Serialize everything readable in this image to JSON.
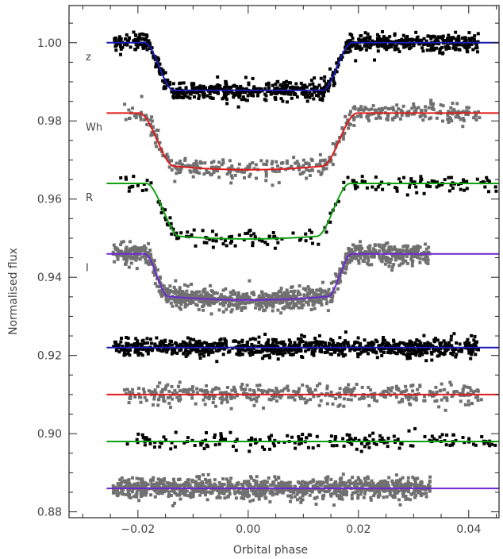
{
  "chart_data": {
    "type": "scatter",
    "title": "",
    "xlabel": "Orbital phase",
    "ylabel": "Normalised flux",
    "xlim": [
      -0.0325,
      0.0455
    ],
    "ylim": [
      0.8785,
      1.0095
    ],
    "x_ticks": [
      -0.02,
      0.0,
      0.02,
      0.04
    ],
    "x_tick_labels": [
      "−0.02",
      "0.00",
      "0.02",
      "0.04"
    ],
    "y_ticks": [
      0.88,
      0.9,
      0.92,
      0.94,
      0.96,
      0.98,
      1.0
    ],
    "y_tick_labels": [
      "0.88",
      "0.90",
      "0.92",
      "0.94",
      "0.96",
      "0.98",
      "1.00"
    ],
    "grid": false,
    "colors": {
      "blue": "#1a1ab4",
      "red": "#e01a1a",
      "green": "#12a012",
      "purple": "#6a2ad0",
      "black_points": "#000000",
      "gray_points": "#707070",
      "axis": "#222222"
    },
    "series": [
      {
        "name": "z",
        "role": "light curve",
        "baseline": 1.0,
        "depth": 0.0122,
        "ingress_start": -0.0188,
        "ingress_end": -0.0135,
        "egress_start": 0.0135,
        "egress_end": 0.0188,
        "curvature": 0.0,
        "model_color": "#1a1ab4",
        "point_color": "#000000",
        "data_range": [
          -0.0245,
          0.0418
        ],
        "n_points": 900,
        "scatter": 0.0011
      },
      {
        "name": "Wh",
        "role": "light curve",
        "baseline": 0.982,
        "depth": 0.0125,
        "ingress_start": -0.0198,
        "ingress_end": -0.0135,
        "egress_start": 0.0135,
        "egress_end": 0.0198,
        "curvature": 0.002,
        "model_color": "#e01a1a",
        "point_color": "#707070",
        "data_range": [
          -0.0225,
          0.0425
        ],
        "n_points": 420,
        "scatter": 0.0013
      },
      {
        "name": "R",
        "role": "light curve",
        "baseline": 0.964,
        "depth": 0.0127,
        "ingress_start": -0.0185,
        "ingress_end": -0.0125,
        "egress_start": 0.0125,
        "egress_end": 0.0185,
        "curvature": 0.0015,
        "model_color": "#12a012",
        "point_color": "#000000",
        "data_range": [
          -0.0235,
          0.045
        ],
        "n_points": 190,
        "scatter": 0.0011
      },
      {
        "name": "I",
        "role": "light curve",
        "baseline": 0.946,
        "depth": 0.0103,
        "ingress_start": -0.0188,
        "ingress_end": -0.0145,
        "egress_start": 0.0145,
        "egress_end": 0.0188,
        "curvature": 0.0015,
        "model_color": "#6a2ad0",
        "point_color": "#707070",
        "data_range": [
          -0.0245,
          0.033
        ],
        "n_points": 1050,
        "scatter": 0.0013
      },
      {
        "name": "",
        "role": "residuals",
        "baseline": 0.922,
        "model_color": "#1a1ab4",
        "point_color": "#000000",
        "data_range": [
          -0.0245,
          0.0418
        ],
        "n_points": 900,
        "scatter": 0.0011
      },
      {
        "name": "",
        "role": "residuals",
        "baseline": 0.91,
        "model_color": "#e01a1a",
        "point_color": "#707070",
        "data_range": [
          -0.0225,
          0.0425
        ],
        "n_points": 420,
        "scatter": 0.0013
      },
      {
        "name": "",
        "role": "residuals",
        "baseline": 0.898,
        "model_color": "#12a012",
        "point_color": "#000000",
        "data_range": [
          -0.0235,
          0.045
        ],
        "n_points": 190,
        "scatter": 0.0011
      },
      {
        "name": "",
        "role": "residuals",
        "baseline": 0.886,
        "model_color": "#6a2ad0",
        "point_color": "#707070",
        "data_range": [
          -0.0245,
          0.033
        ],
        "n_points": 1050,
        "scatter": 0.0013
      }
    ]
  }
}
